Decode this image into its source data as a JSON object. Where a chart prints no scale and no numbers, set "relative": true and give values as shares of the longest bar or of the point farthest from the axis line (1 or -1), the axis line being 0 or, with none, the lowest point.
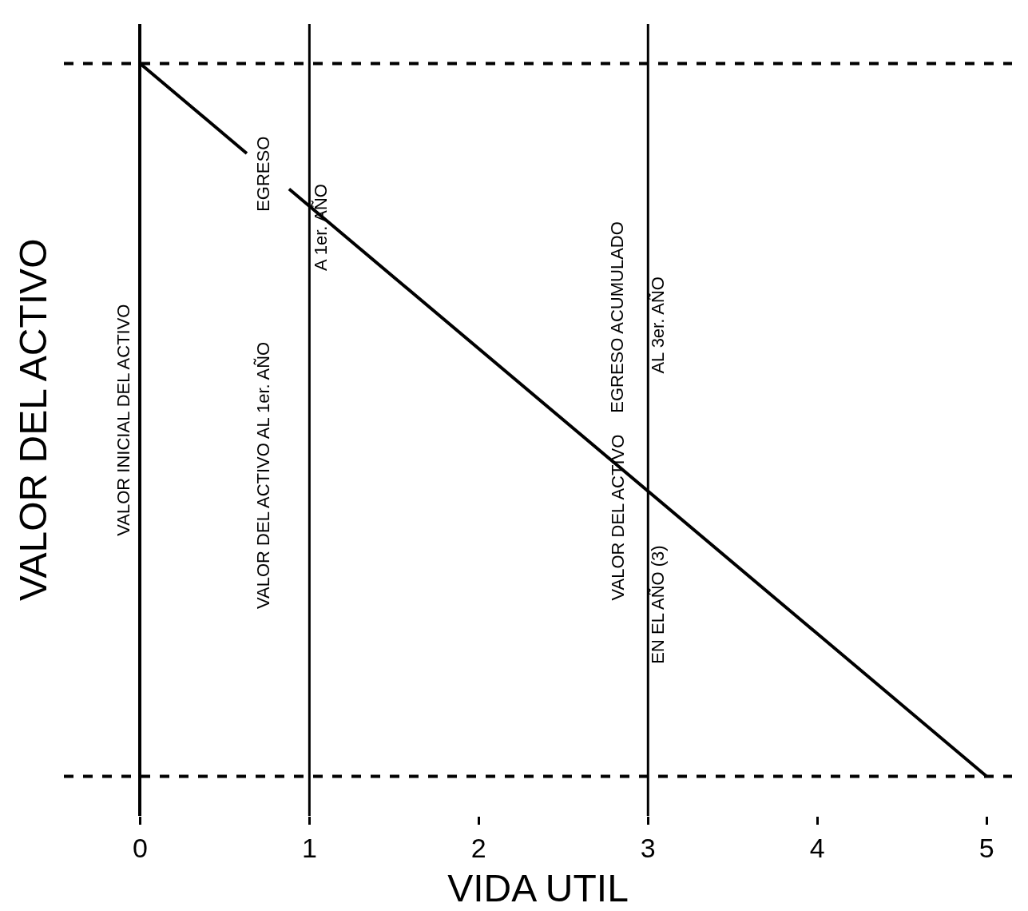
{
  "chart_data": {
    "type": "line",
    "relative": true,
    "xlabel": "VIDA UTIL",
    "ylabel": "VALOR DEL ACTIVO",
    "xlim": [
      -0.45,
      5.15
    ],
    "xticks": [
      0,
      1,
      2,
      3,
      4,
      5
    ],
    "marker": "none",
    "line_style": "solid",
    "series": [
      {
        "color": "#000000",
        "x": [
          0,
          0.63,
          0.75,
          0.88,
          5
        ],
        "values": [
          1,
          0.874,
          null,
          0.824,
          0
        ]
      }
    ],
    "ref_lines": [
      {
        "axis": "x",
        "value": 1,
        "label": null,
        "color": "#000000",
        "line_style": "solid"
      },
      {
        "axis": "x",
        "value": 3,
        "label": null,
        "color": "#000000",
        "line_style": "solid"
      },
      {
        "axis": "y",
        "value": 1,
        "label": null,
        "color": "#000000",
        "line_style": "dashed"
      },
      {
        "axis": "y",
        "value": 0,
        "label": null,
        "color": "#000000",
        "line_style": "dashed"
      }
    ],
    "annotations": [
      "VALOR INICIAL DEL ACTIVO",
      "VALOR DEL ACTIVO AL 1er. AÑO",
      "EGRESO",
      "A 1er. AÑO",
      "EGRESO ACUMULADO",
      "AL 3er. AÑO",
      "VALOR DEL ACTIVO",
      "EN EL AÑO (3)"
    ]
  }
}
